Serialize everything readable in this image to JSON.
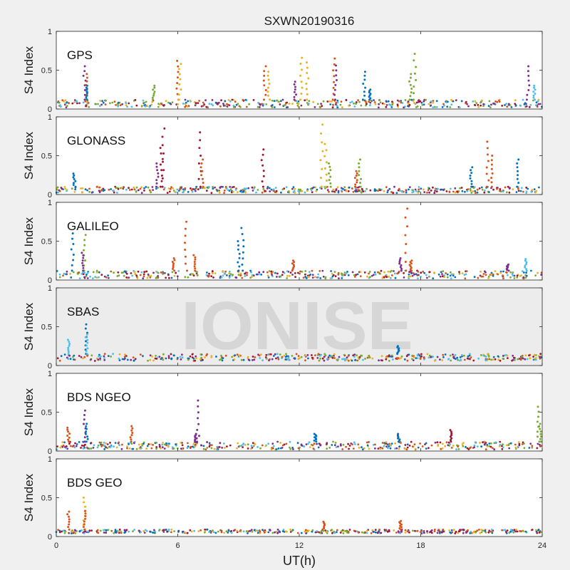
{
  "figure_title": "SXWN20190316",
  "watermark": "IONISE",
  "x_axis_label": "UT(h)",
  "colors": [
    "#0072bd",
    "#d95319",
    "#edb120",
    "#7e2f8e",
    "#77ac30",
    "#4dbeee",
    "#a2142f"
  ],
  "chart_data": [
    {
      "type": "scatter",
      "panel_label": "GPS",
      "ylabel": "S4 Index",
      "xlim": [
        0,
        24
      ],
      "ylim": [
        0,
        1
      ],
      "xticks": [
        0,
        6,
        12,
        18,
        24
      ],
      "yticks": [
        0,
        0.5,
        1
      ],
      "ytick_labels": [
        "0",
        "0.5",
        "1"
      ],
      "baseline": [
        0.02,
        0.12
      ],
      "background": "white",
      "events": [
        {
          "x": 1.4,
          "y": 0.55,
          "c": 3
        },
        {
          "x": 1.5,
          "y": 0.45,
          "c": 1
        },
        {
          "x": 1.5,
          "y": 0.3,
          "c": 0
        },
        {
          "x": 4.8,
          "y": 0.3,
          "c": 4
        },
        {
          "x": 6.0,
          "y": 0.62,
          "c": 1
        },
        {
          "x": 6.1,
          "y": 0.58,
          "c": 2
        },
        {
          "x": 10.3,
          "y": 0.55,
          "c": 1
        },
        {
          "x": 10.5,
          "y": 0.48,
          "c": 2
        },
        {
          "x": 11.8,
          "y": 0.35,
          "c": 3
        },
        {
          "x": 12.1,
          "y": 0.66,
          "c": 2
        },
        {
          "x": 12.4,
          "y": 0.6,
          "c": 2
        },
        {
          "x": 13.7,
          "y": 0.65,
          "c": 1
        },
        {
          "x": 13.8,
          "y": 0.56,
          "c": 3
        },
        {
          "x": 15.2,
          "y": 0.48,
          "c": 0
        },
        {
          "x": 15.5,
          "y": 0.25,
          "c": 0
        },
        {
          "x": 17.5,
          "y": 0.45,
          "c": 4
        },
        {
          "x": 17.7,
          "y": 0.71,
          "c": 4
        },
        {
          "x": 23.3,
          "y": 0.55,
          "c": 3
        },
        {
          "x": 23.6,
          "y": 0.3,
          "c": 5
        }
      ]
    },
    {
      "type": "scatter",
      "panel_label": "GLONASS",
      "ylabel": "S4 Index",
      "xlim": [
        0,
        24
      ],
      "ylim": [
        0,
        1
      ],
      "xticks": [
        0,
        6,
        12,
        18,
        24
      ],
      "yticks": [
        0,
        0.5,
        1
      ],
      "ytick_labels": [
        "0",
        "0.5",
        "1"
      ],
      "baseline": [
        0.02,
        0.1
      ],
      "background": "white",
      "events": [
        {
          "x": 0.9,
          "y": 0.27,
          "c": 0
        },
        {
          "x": 5.3,
          "y": 0.85,
          "c": 6
        },
        {
          "x": 5.2,
          "y": 0.6,
          "c": 6
        },
        {
          "x": 5.0,
          "y": 0.4,
          "c": 3
        },
        {
          "x": 7.1,
          "y": 0.8,
          "c": 6
        },
        {
          "x": 7.2,
          "y": 0.45,
          "c": 1
        },
        {
          "x": 10.2,
          "y": 0.58,
          "c": 6
        },
        {
          "x": 13.1,
          "y": 0.9,
          "c": 2
        },
        {
          "x": 13.3,
          "y": 0.65,
          "c": 2
        },
        {
          "x": 13.5,
          "y": 0.4,
          "c": 4
        },
        {
          "x": 15.0,
          "y": 0.45,
          "c": 4
        },
        {
          "x": 14.8,
          "y": 0.3,
          "c": 1
        },
        {
          "x": 20.5,
          "y": 0.35,
          "c": 0
        },
        {
          "x": 21.3,
          "y": 0.68,
          "c": 1
        },
        {
          "x": 21.5,
          "y": 0.5,
          "c": 1
        },
        {
          "x": 22.8,
          "y": 0.45,
          "c": 0
        }
      ]
    },
    {
      "type": "scatter",
      "panel_label": "GALILEO",
      "ylabel": "S4 Index",
      "xlim": [
        0,
        24
      ],
      "ylim": [
        0,
        1
      ],
      "xticks": [
        0,
        6,
        12,
        18,
        24
      ],
      "yticks": [
        0,
        0.5,
        1
      ],
      "ytick_labels": [
        "0",
        "0.5",
        "1"
      ],
      "baseline": [
        0.02,
        0.12
      ],
      "background": "white",
      "events": [
        {
          "x": 0.8,
          "y": 0.6,
          "c": 0
        },
        {
          "x": 1.4,
          "y": 0.58,
          "c": 4
        },
        {
          "x": 1.3,
          "y": 0.35,
          "c": 3
        },
        {
          "x": 5.8,
          "y": 0.28,
          "c": 1
        },
        {
          "x": 6.4,
          "y": 0.75,
          "c": 1
        },
        {
          "x": 6.8,
          "y": 0.32,
          "c": 1
        },
        {
          "x": 9.2,
          "y": 0.67,
          "c": 0
        },
        {
          "x": 9.0,
          "y": 0.5,
          "c": 0
        },
        {
          "x": 11.7,
          "y": 0.25,
          "c": 1
        },
        {
          "x": 17.3,
          "y": 0.92,
          "c": 1
        },
        {
          "x": 17.0,
          "y": 0.28,
          "c": 3
        },
        {
          "x": 17.5,
          "y": 0.25,
          "c": 1
        },
        {
          "x": 22.3,
          "y": 0.2,
          "c": 3
        },
        {
          "x": 23.2,
          "y": 0.27,
          "c": 5
        }
      ]
    },
    {
      "type": "scatter",
      "panel_label": "SBAS",
      "ylabel": "S4 Index",
      "xlim": [
        0,
        24
      ],
      "ylim": [
        0,
        1
      ],
      "xticks": [
        0,
        6,
        12,
        18,
        24
      ],
      "yticks": [
        0,
        0.5,
        1
      ],
      "ytick_labels": [
        "0",
        "0.5",
        "1"
      ],
      "baseline": [
        0.06,
        0.15
      ],
      "background": "watermark",
      "events": [
        {
          "x": 0.6,
          "y": 0.33,
          "c": 5
        },
        {
          "x": 1.5,
          "y": 0.53,
          "c": 0
        },
        {
          "x": 1.5,
          "y": 0.4,
          "c": 5
        },
        {
          "x": 16.9,
          "y": 0.25,
          "c": 0
        }
      ]
    },
    {
      "type": "scatter",
      "panel_label": "BDS NGEO",
      "ylabel": "S4 Index",
      "xlim": [
        0,
        24
      ],
      "ylim": [
        0,
        1
      ],
      "xticks": [
        0,
        6,
        12,
        18,
        24
      ],
      "yticks": [
        0,
        0.5,
        1
      ],
      "ytick_labels": [
        "0",
        "0.5",
        "1"
      ],
      "baseline": [
        0.02,
        0.12
      ],
      "background": "white",
      "events": [
        {
          "x": 0.6,
          "y": 0.3,
          "c": 1
        },
        {
          "x": 1.4,
          "y": 0.52,
          "c": 3
        },
        {
          "x": 1.5,
          "y": 0.35,
          "c": 0
        },
        {
          "x": 3.7,
          "y": 0.32,
          "c": 1
        },
        {
          "x": 7.0,
          "y": 0.65,
          "c": 3
        },
        {
          "x": 6.9,
          "y": 0.22,
          "c": 3
        },
        {
          "x": 12.8,
          "y": 0.22,
          "c": 0
        },
        {
          "x": 16.9,
          "y": 0.22,
          "c": 0
        },
        {
          "x": 19.5,
          "y": 0.27,
          "c": 6
        },
        {
          "x": 23.8,
          "y": 0.57,
          "c": 4
        },
        {
          "x": 23.9,
          "y": 0.35,
          "c": 4
        }
      ]
    },
    {
      "type": "scatter",
      "panel_label": "BDS GEO",
      "ylabel": "S4 Index",
      "xlim": [
        0,
        24
      ],
      "ylim": [
        0,
        1
      ],
      "xticks": [
        0,
        6,
        12,
        18,
        24
      ],
      "yticks": [
        0,
        0.5,
        1
      ],
      "ytick_labels": [
        "0",
        "0.5",
        "1"
      ],
      "xtick_labels": [
        "0",
        "6",
        "12",
        "18",
        "24"
      ],
      "baseline": [
        0.04,
        0.09
      ],
      "background": "white",
      "events": [
        {
          "x": 0.6,
          "y": 0.32,
          "c": 1
        },
        {
          "x": 1.4,
          "y": 0.5,
          "c": 2
        },
        {
          "x": 1.4,
          "y": 0.33,
          "c": 1
        },
        {
          "x": 13.2,
          "y": 0.19,
          "c": 1
        },
        {
          "x": 17.0,
          "y": 0.2,
          "c": 1
        }
      ]
    }
  ]
}
